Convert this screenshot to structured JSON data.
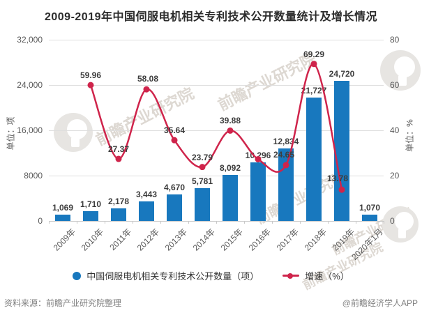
{
  "title": "2009-2019年中国伺服电机相关专利技术公开数量统计及增长情况",
  "left_axis": {
    "unit_label": "单位：项",
    "ticks": [
      "32,000",
      "24,000",
      "16,000",
      "8000",
      "0"
    ]
  },
  "right_axis": {
    "unit_label": "单位：%",
    "ticks": [
      "80",
      "60",
      "40",
      "20",
      "0"
    ]
  },
  "chart_data": {
    "type": "bar+line",
    "title": "2009-2019年中国伺服电机相关专利技术公开数量统计及增长情况",
    "categories": [
      "2009年",
      "2010年",
      "2011年",
      "2012年",
      "2013年",
      "2014年",
      "2015年",
      "2016年",
      "2017年",
      "2018年",
      "2019年",
      "2020年1月"
    ],
    "series": [
      {
        "name": "中国伺服电机相关专利技术公开数量（项）",
        "type": "bar",
        "yaxis": "left",
        "color": "#1878be",
        "values": [
          1069,
          1710,
          2178,
          3443,
          4670,
          5781,
          8092,
          10296,
          12834,
          21727,
          24720,
          1070
        ],
        "labels": [
          "1,069",
          "1,710",
          "2,178",
          "3,443",
          "4,670",
          "5,781",
          "8,092",
          "10,296",
          "12,834",
          "21,727",
          "24,720",
          "1,070"
        ]
      },
      {
        "name": "增速（%）",
        "type": "line",
        "yaxis": "right",
        "color": "#cf244b",
        "values": [
          null,
          59.96,
          27.37,
          58.08,
          35.64,
          23.79,
          39.88,
          27.24,
          24.65,
          69.29,
          13.78,
          null
        ],
        "labels": [
          "",
          "59.96",
          "27.37",
          "58.08",
          "35.64",
          "23.79",
          "39.88",
          "",
          "24.65",
          "69.29",
          "13.78",
          ""
        ],
        "label_offsets": {
          "3": [
            2,
            -8
          ],
          "8": [
            -3,
            -8
          ],
          "10": [
            -6,
            -9
          ]
        }
      }
    ],
    "ylim_left": [
      0,
      32000
    ],
    "ylim_right": [
      0,
      80
    ],
    "ylabel_left": "单位：项",
    "ylabel_right": "单位：%",
    "grid": true,
    "legend_position": "bottom"
  },
  "legend": [
    {
      "label": "中国伺服电机相关专利技术公开数量（项）",
      "marker": "circle",
      "color": "#1878be"
    },
    {
      "label": "增速（%）",
      "marker": "line-dot",
      "color": "#cf244b"
    }
  ],
  "footer": {
    "source": "资料来源：前瞻产业研究院整理",
    "credit": "@前瞻经济学人APP"
  },
  "watermark": {
    "text": "前瞻产业研究院"
  }
}
